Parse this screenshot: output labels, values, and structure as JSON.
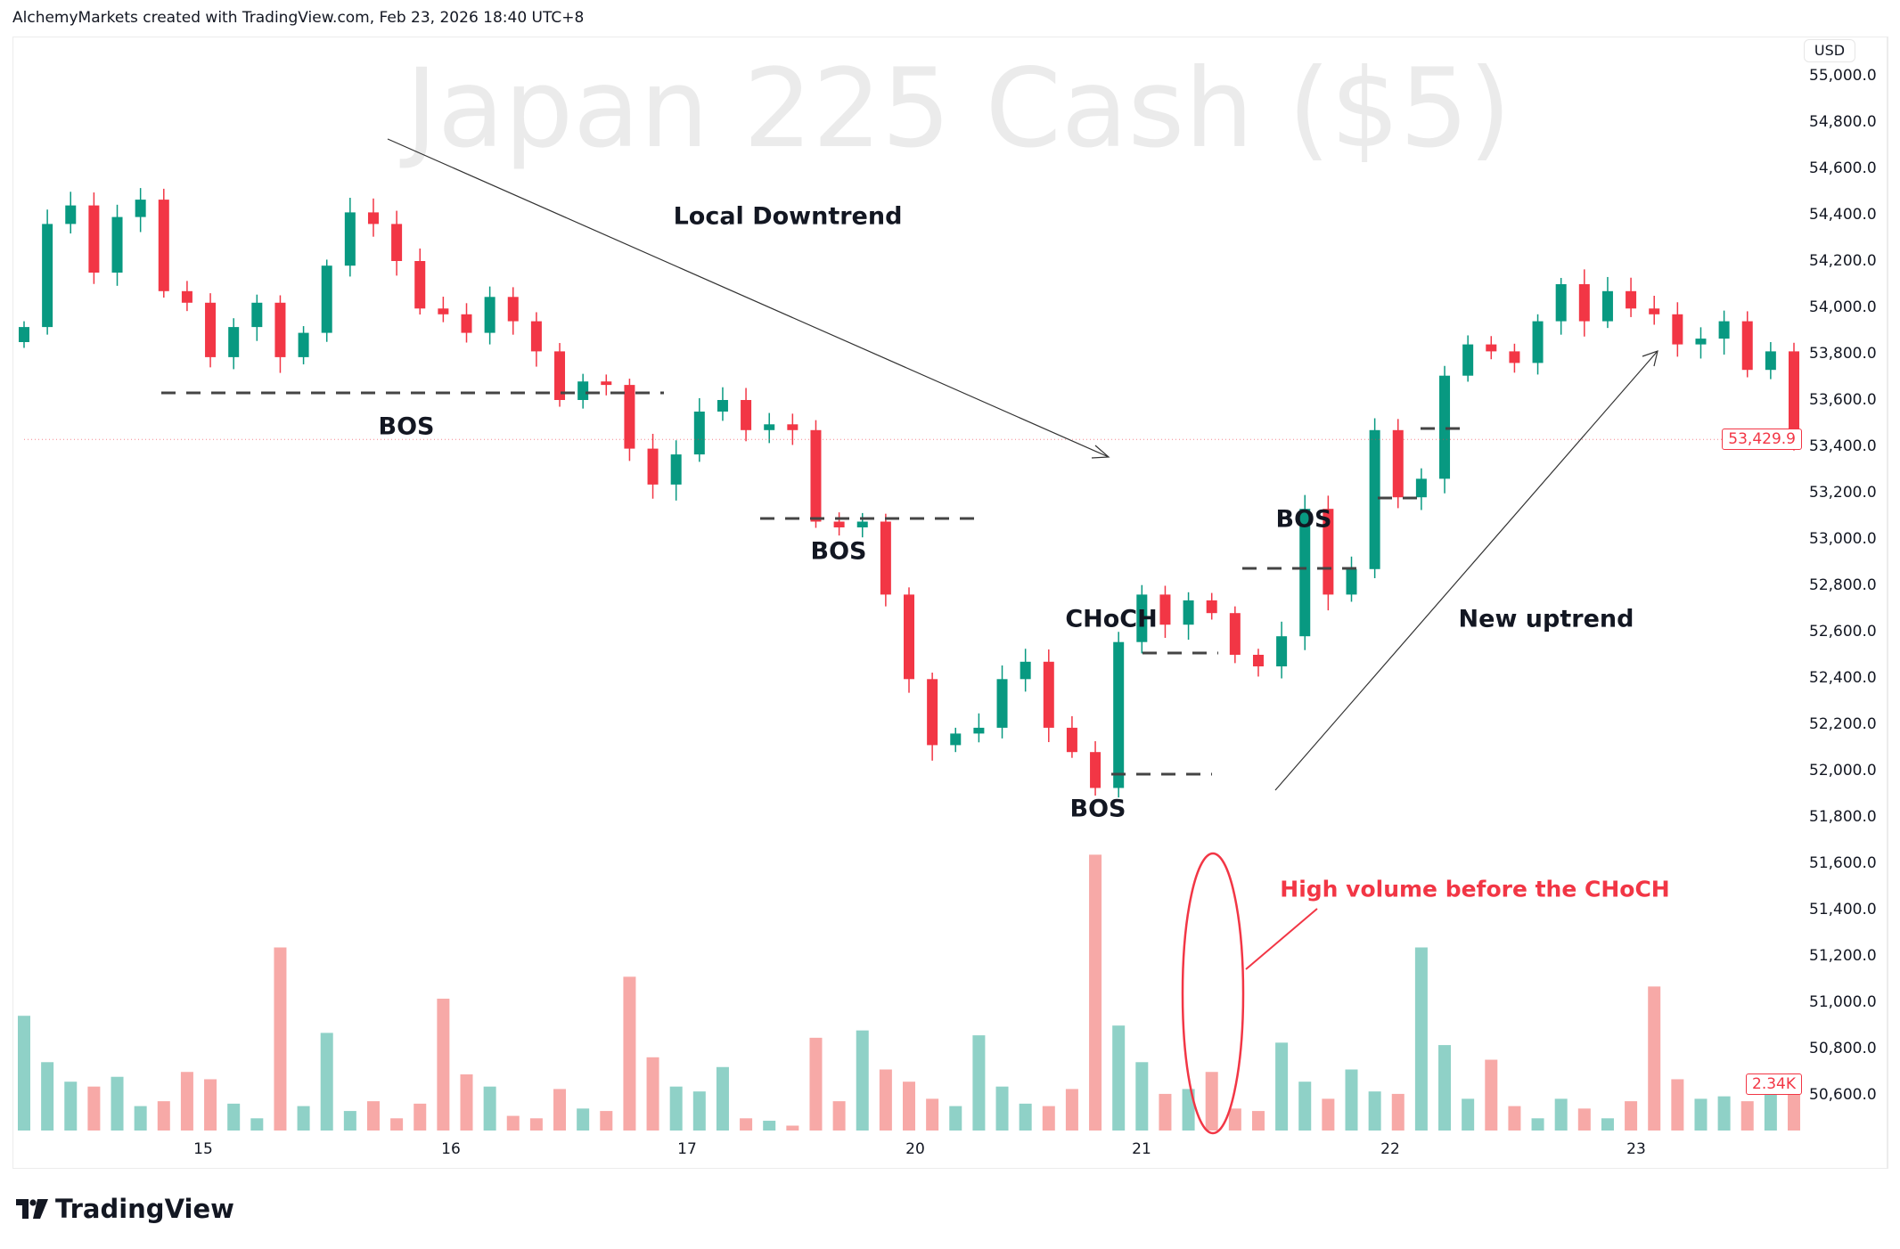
{
  "header": {
    "attribution": "AlchemyMarkets created with TradingView.com, Feb 23, 2026 18:40 UTC+8"
  },
  "watermark": "Japan 225 Cash ($5)",
  "currency": "USD",
  "colors": {
    "up": "#089981",
    "down": "#F23645",
    "up_volume": "#8FD1C7",
    "down_volume": "#F7A9A7",
    "annotation": "#F23645"
  },
  "annotations": {
    "downtrend": "Local Downtrend",
    "bos1": "BOS",
    "bos2": "BOS",
    "bos3": "BOS",
    "choch": "CHoCH",
    "bos4": "BOS",
    "uptrend": "New uptrend",
    "volume_note": "High volume before the CHoCH"
  },
  "last_price": "53,429.9",
  "last_volume": "2.34K",
  "logo": "TradingView",
  "chart_data": {
    "type": "candlestick",
    "ylim": [
      50500,
      55000
    ],
    "price_ticks": [
      "55,000.0",
      "54,800.0",
      "54,600.0",
      "54,400.0",
      "54,200.0",
      "54,000.0",
      "53,800.0",
      "53,600.0",
      "53,400.0",
      "53,200.0",
      "53,000.0",
      "52,800.0",
      "52,600.0",
      "52,400.0",
      "52,200.0",
      "52,000.0",
      "51,800.0",
      "51,600.0",
      "51,400.0",
      "51,200.0",
      "51,000.0",
      "50,800.0",
      "50,600.0"
    ],
    "time_ticks": [
      "15",
      "16",
      "17",
      "20",
      "21",
      "22",
      "23"
    ],
    "first_open": 53850,
    "closes": [
      53915,
      54360,
      54440,
      54150,
      54390,
      54465,
      54070,
      54020,
      53785,
      53915,
      54020,
      53785,
      53890,
      54180,
      54410,
      54360,
      54200,
      53995,
      53970,
      53890,
      54045,
      53940,
      53810,
      53600,
      53680,
      53665,
      53390,
      53235,
      53365,
      53550,
      53600,
      53470,
      53495,
      53470,
      53075,
      53050,
      53075,
      52760,
      52395,
      52110,
      52160,
      52185,
      52395,
      52470,
      52185,
      52080,
      51925,
      52555,
      52760,
      52630,
      52735,
      52680,
      52500,
      52450,
      52580,
      53130,
      52760,
      52870,
      53470,
      53180,
      53260,
      53705,
      53840,
      53810,
      53760,
      53940,
      54100,
      53940,
      54070,
      53995,
      53970,
      53840,
      53865,
      53940,
      53730,
      53810,
      53429.9
    ],
    "volumes_k": [
      4.7,
      2.8,
      2.0,
      1.8,
      2.2,
      1.0,
      1.2,
      2.4,
      2.1,
      1.1,
      0.5,
      7.5,
      1.0,
      4.0,
      0.8,
      1.2,
      0.5,
      1.1,
      5.4,
      2.3,
      1.8,
      0.6,
      0.5,
      1.7,
      0.9,
      0.8,
      6.3,
      3.0,
      1.8,
      1.6,
      2.6,
      0.5,
      0.4,
      0.2,
      3.8,
      1.2,
      4.1,
      2.5,
      2.0,
      1.3,
      1.0,
      3.9,
      1.8,
      1.1,
      1.0,
      1.7,
      11.3,
      4.3,
      2.8,
      1.5,
      1.7,
      2.4,
      0.9,
      0.8,
      3.6,
      2.0,
      1.3,
      2.5,
      1.6,
      1.5,
      7.5,
      3.5,
      1.3,
      2.9,
      1.0,
      0.5,
      1.3,
      0.9,
      0.5,
      1.2,
      5.9,
      2.1,
      1.3,
      1.4,
      1.2,
      2.0,
      2.34
    ],
    "levels": {
      "bos1": 53650,
      "bos2": 53100,
      "bos3": 51990,
      "choch": 52510,
      "bos4": 52880,
      "bos5": 53180,
      "bos6": 53500
    }
  }
}
